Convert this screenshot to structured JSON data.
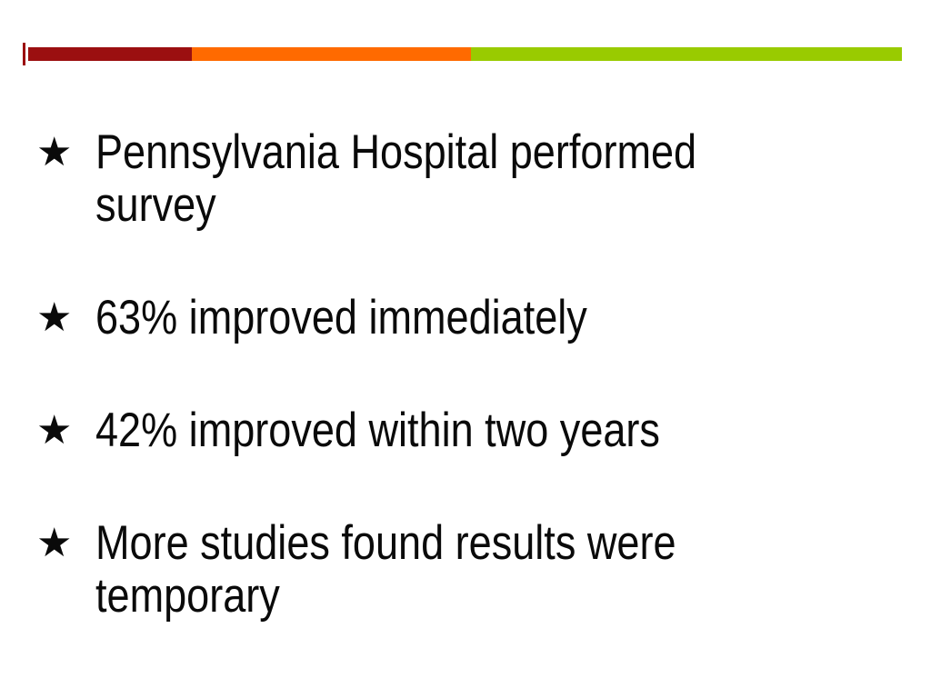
{
  "slide": {
    "background": "#ffffff",
    "text_color": "#0a0a0a",
    "accent_bar": {
      "tick_color": "#9b0f10",
      "segments": [
        {
          "name": "dark-red",
          "color": "#9b0f10"
        },
        {
          "name": "orange",
          "color": "#ff6a00"
        },
        {
          "name": "green",
          "color": "#99cb00"
        }
      ]
    },
    "bullets": [
      {
        "marker": "★",
        "lines": [
          "Pennsylvania Hospital performed",
          "survey"
        ]
      },
      {
        "marker": "★",
        "lines": [
          "63% improved immediately"
        ]
      },
      {
        "marker": "★",
        "lines": [
          "42% improved within two years"
        ]
      },
      {
        "marker": "★",
        "lines": [
          "More studies found results were",
          "temporary"
        ]
      }
    ]
  }
}
